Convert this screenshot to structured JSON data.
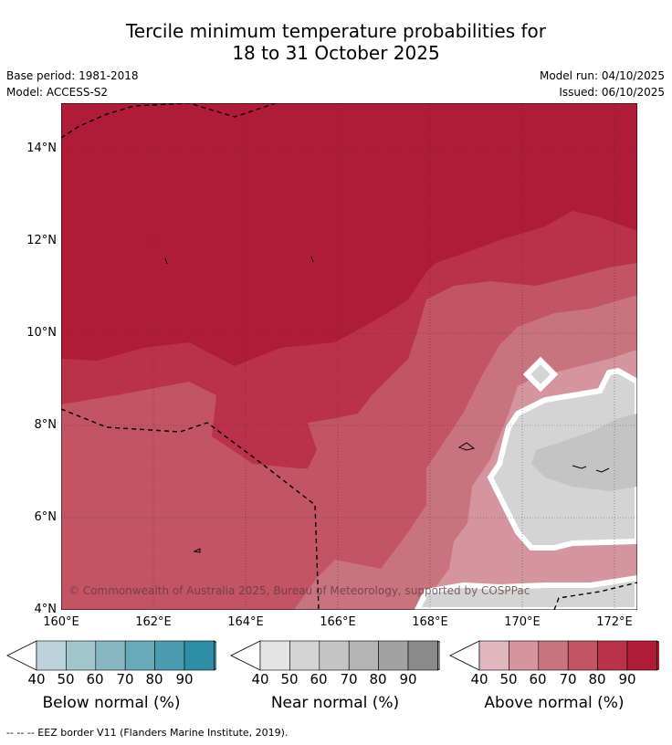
{
  "title_line1": "Tercile minimum temperature probabilities for",
  "title_line2": "18 to 31 October 2025",
  "base_period": "Base period: 1981-2018",
  "model": "Model: ACCESS-S2",
  "model_run": "Model run: 04/10/2025",
  "issued": "Issued: 06/10/2025",
  "copyright": "© Commonwealth of Australia 2025, Bureau of Meteorology, supported by COSPPac",
  "footnote": "--  --  -- EEZ border V11 (Flanders Marine Institute, 2019).",
  "axes": {
    "lat_labels": [
      "14°N",
      "12°N",
      "10°N",
      "8°N",
      "6°N",
      "4°N"
    ],
    "lon_labels": [
      "160°E",
      "162°E",
      "164°E",
      "166°E",
      "168°E",
      "170°E",
      "172°E"
    ]
  },
  "colorbars": [
    {
      "title": "Below normal (%)",
      "ticks": [
        "40",
        "50",
        "60",
        "70",
        "80",
        "90"
      ],
      "colors": [
        "#bdd3da",
        "#a3c6cc",
        "#87b7c2",
        "#6aa9b8",
        "#4b9cb0",
        "#2e8ea6"
      ],
      "arrow_color": "#2e8ea6"
    },
    {
      "title": "Near normal (%)",
      "ticks": [
        "40",
        "50",
        "60",
        "70",
        "80",
        "90"
      ],
      "colors": [
        "#e4e4e4",
        "#d4d4d4",
        "#c4c4c4",
        "#b4b4b4",
        "#a2a2a2",
        "#8a8a8a"
      ],
      "arrow_color": "#8a8a8a"
    },
    {
      "title": "Above normal (%)",
      "ticks": [
        "40",
        "50",
        "60",
        "70",
        "80",
        "90"
      ],
      "colors": [
        "#e0b7be",
        "#d4959e",
        "#c9737f",
        "#c25464",
        "#b93249",
        "#b01c38"
      ],
      "arrow_color": "#b01c38"
    }
  ],
  "colors": {
    "above_90": "#b01c38",
    "above_80": "#b93249",
    "above_70": "#c25464",
    "above_60": "#c9737f",
    "above_50": "#d4959e",
    "near_40": "#d4d4d4",
    "near_50": "#c4c4c4"
  }
}
